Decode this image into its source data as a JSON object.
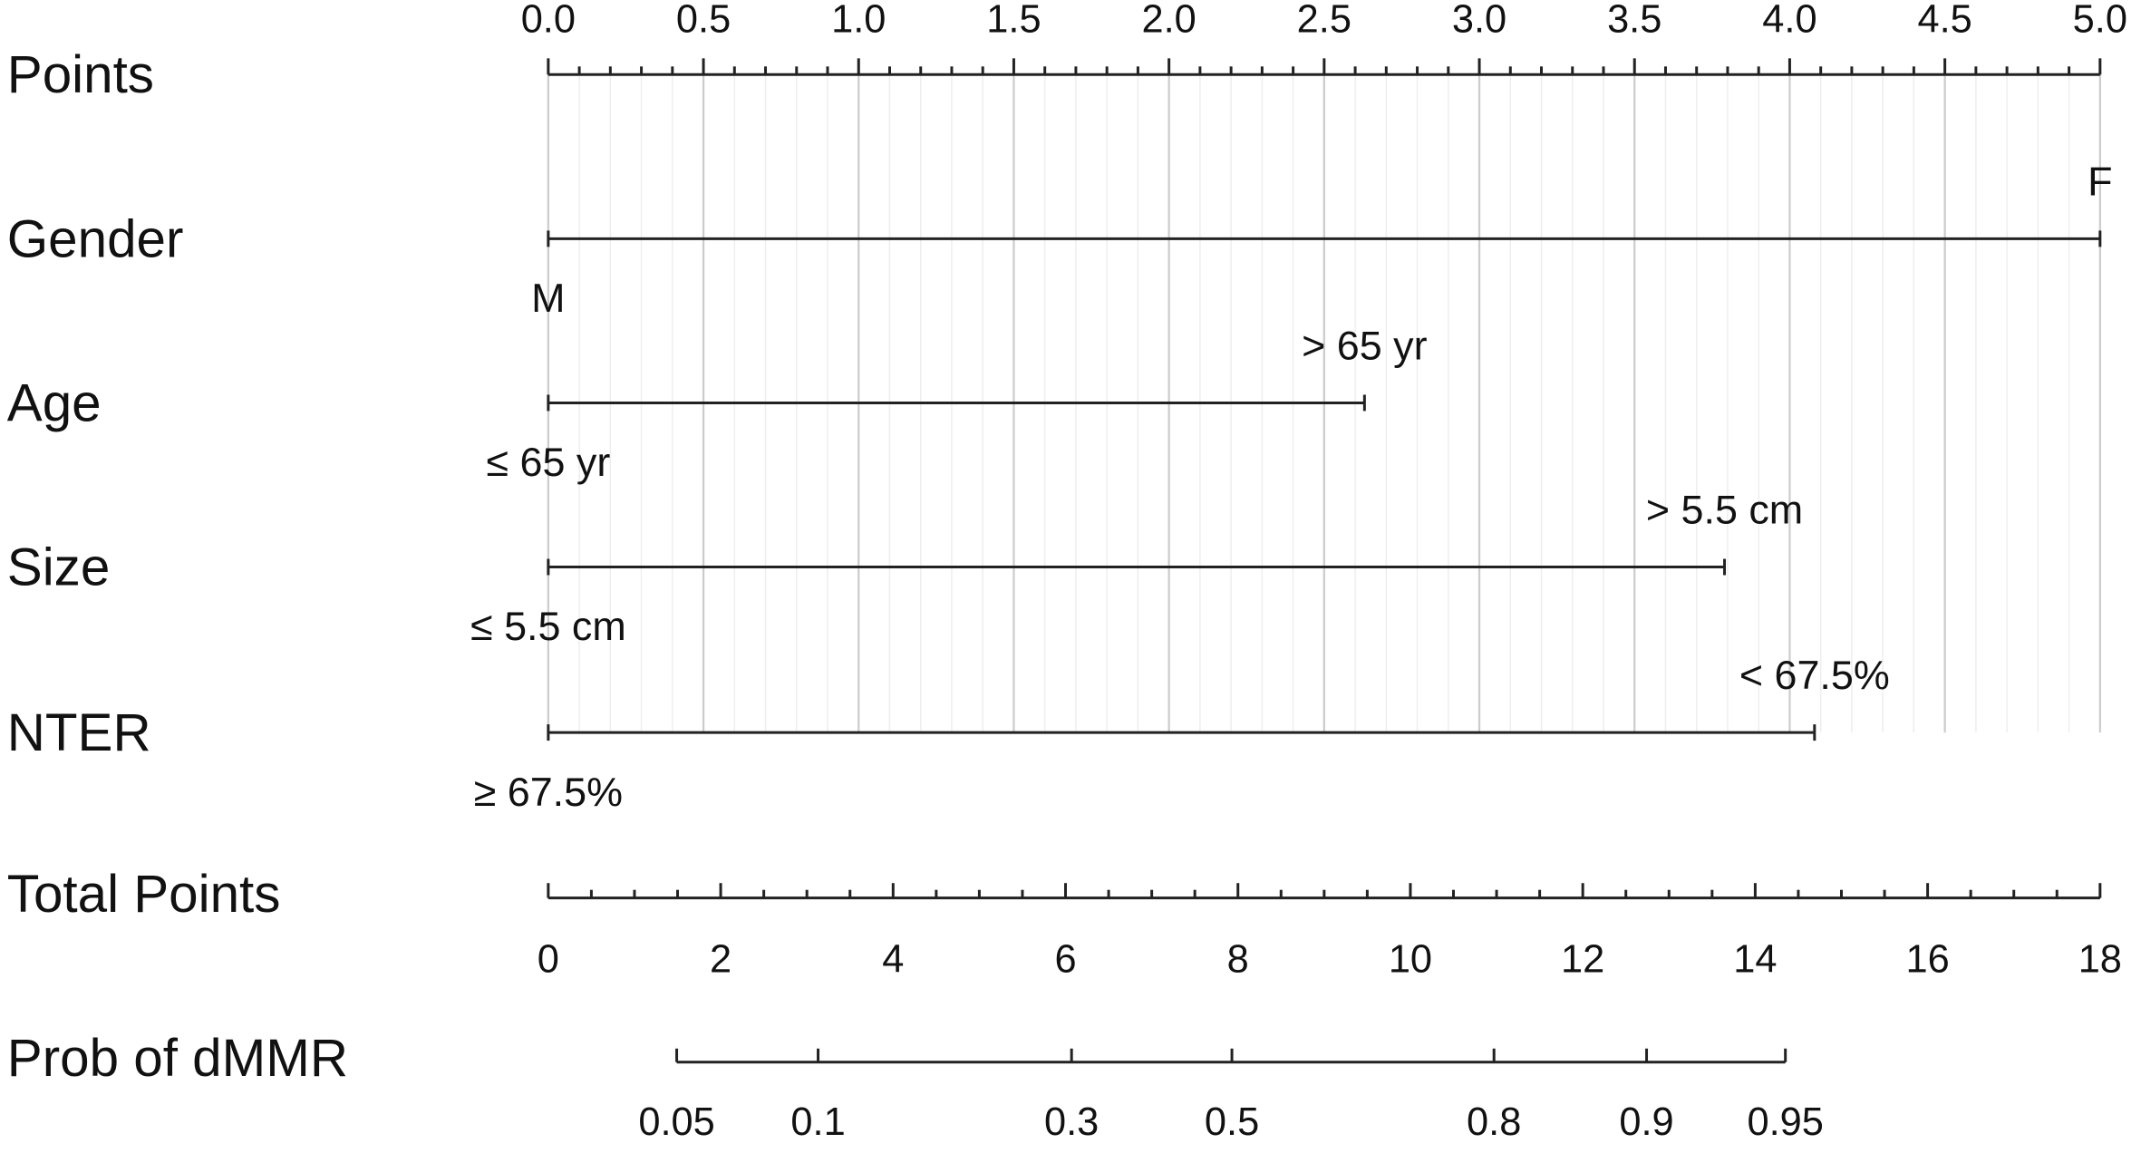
{
  "chart_data": {
    "type": "nomogram",
    "grid": true,
    "points_axis": {
      "label": "Points",
      "xlim": [
        0,
        5
      ],
      "xticks": [
        {
          "value": 0,
          "label": "0.0"
        },
        0.5,
        {
          "value": 1,
          "label": "1.0"
        },
        1.5,
        {
          "value": 2,
          "label": "2.0"
        },
        2.5,
        {
          "value": 3,
          "label": "3.0"
        },
        3.5,
        {
          "value": 4,
          "label": "4.0"
        },
        4.5,
        {
          "value": 5,
          "label": "5.0"
        }
      ],
      "minor_ticks": [
        0.1,
        0.2,
        0.3,
        0.4,
        0.6,
        0.7,
        0.8,
        0.9,
        1.1,
        1.2,
        1.3,
        1.4,
        1.6,
        1.7,
        1.8,
        1.9,
        2.1,
        2.2,
        2.3,
        2.4,
        2.6,
        2.7,
        2.8,
        2.9,
        3.1,
        3.2,
        3.3,
        3.4,
        3.6,
        3.7,
        3.8,
        3.9,
        4.1,
        4.2,
        4.3,
        4.4,
        4.6,
        4.7,
        4.8,
        4.9
      ]
    },
    "variables": [
      {
        "name": "Gender",
        "levels": [
          {
            "label": "M",
            "value": 0
          },
          {
            "label": "F",
            "value": 5
          }
        ]
      },
      {
        "name": "Age",
        "levels": [
          {
            "label": "≤ 65 yr",
            "value": 0
          },
          {
            "label": "> 65 yr",
            "value": 2.63
          }
        ]
      },
      {
        "name": "Size",
        "levels": [
          {
            "label": "≤ 5.5 cm",
            "value": 0
          },
          {
            "label": "> 5.5 cm",
            "value": 3.79
          }
        ]
      },
      {
        "name": "NTER",
        "levels": [
          {
            "label": "≥ 67.5%",
            "value": 0
          },
          {
            "label": "< 67.5%",
            "value": 4.08
          }
        ]
      }
    ],
    "total_axis": {
      "label": "Total Points",
      "xlim": [
        0,
        18
      ],
      "xticks": [
        0,
        2,
        4,
        6,
        8,
        10,
        12,
        14,
        16,
        18
      ],
      "minor_ticks": [
        0.5,
        1,
        1.5,
        2.5,
        3,
        3.5,
        4.5,
        5,
        5.5,
        6.5,
        7,
        7.5,
        8.5,
        9,
        9.5,
        10.5,
        11,
        11.5,
        12.5,
        13,
        13.5,
        14.5,
        15,
        15.5,
        16.5,
        17,
        17.5
      ]
    },
    "prob_axis": {
      "label": "Prob of dMMR",
      "ticks": [
        0.05,
        0.1,
        0.3,
        0.5,
        0.8,
        0.9,
        0.95
      ],
      "positions": [
        1.49,
        3.13,
        6.07,
        7.93,
        10.97,
        12.74,
        14.35
      ]
    }
  }
}
